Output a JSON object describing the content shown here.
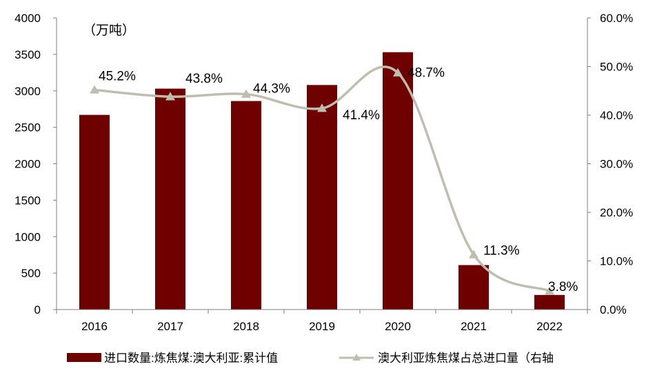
{
  "chart_data": {
    "type": "bar+line",
    "unit_label": "（万吨）",
    "categories": [
      "2016",
      "2017",
      "2018",
      "2019",
      "2020",
      "2021",
      "2022"
    ],
    "series": [
      {
        "name": "进口数量:炼焦煤:澳大利亚:累计值",
        "type": "bar",
        "axis": "left",
        "values": [
          2670,
          3030,
          2860,
          3080,
          3530,
          610,
          200
        ]
      },
      {
        "name": "澳大利亚炼焦煤占总进口量（右轴",
        "type": "line",
        "axis": "right",
        "values": [
          45.2,
          43.8,
          44.3,
          41.4,
          48.7,
          11.3,
          3.8
        ],
        "labels": [
          "45.2%",
          "43.8%",
          "44.3%",
          "41.4%",
          "48.7%",
          "11.3%",
          "3.8%"
        ]
      }
    ],
    "y_left": {
      "min": 0,
      "max": 4000,
      "ticks": [
        "0",
        "500",
        "1000",
        "1500",
        "2000",
        "2500",
        "3000",
        "3500",
        "4000"
      ]
    },
    "y_right": {
      "min": 0,
      "max": 60,
      "ticks": [
        "0.0%",
        "10.0%",
        "20.0%",
        "30.0%",
        "40.0%",
        "50.0%",
        "60.0%"
      ]
    },
    "colors": {
      "bar": "#6e0000",
      "line": "#bfbdae",
      "axis": "#7f7f7f"
    },
    "legend_position": "bottom"
  }
}
